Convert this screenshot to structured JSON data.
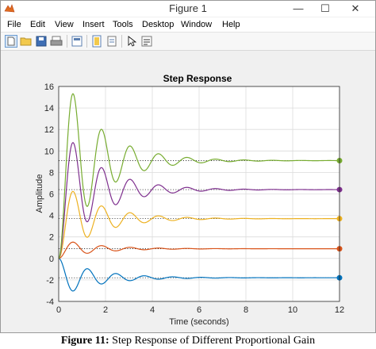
{
  "window": {
    "title": "Figure 1",
    "controls": {
      "minimize": "—",
      "maximize": "☐",
      "close": "✕"
    }
  },
  "menu": {
    "items": [
      "File",
      "Edit",
      "View",
      "Insert",
      "Tools",
      "Desktop",
      "Window",
      "Help"
    ]
  },
  "toolbar": {
    "icons": [
      "new-figure-icon",
      "open-file-icon",
      "save-icon",
      "print-icon",
      "print-preview-icon",
      "link-plot-icon",
      "insert-colorbar-icon",
      "select-arrow-icon",
      "data-cursor-icon"
    ]
  },
  "chart_data": {
    "type": "line",
    "title": "Step Response",
    "xlabel": "Time (seconds)",
    "ylabel": "Amplitude",
    "xlim": [
      0,
      12
    ],
    "ylim": [
      -4,
      16
    ],
    "xticks": [
      0,
      2,
      4,
      6,
      8,
      10,
      12
    ],
    "yticks": [
      -4,
      -2,
      0,
      2,
      4,
      6,
      8,
      10,
      12,
      14,
      16
    ],
    "grid": true,
    "series": [
      {
        "color": "#0072bd",
        "final": -1.8,
        "peak_offset": -1.4,
        "wn": 5.2,
        "zeta": 0.12,
        "dot_end": true
      },
      {
        "color": "#d95319",
        "final": 0.9,
        "peak_offset": 1.0,
        "wn": 5.2,
        "zeta": 0.12,
        "dot_end": true
      },
      {
        "color": "#edb120",
        "final": 3.7,
        "peak_offset": 4.0,
        "wn": 5.2,
        "zeta": 0.12,
        "dot_end": true
      },
      {
        "color": "#7e2f8e",
        "final": 6.4,
        "peak_offset": 4.2,
        "wn": 5.2,
        "zeta": 0.12,
        "dot_end": true
      },
      {
        "color": "#77ac30",
        "final": 9.1,
        "peak_offset": 6.0,
        "wn": 5.2,
        "zeta": 0.12,
        "dot_end": true
      }
    ]
  },
  "caption": {
    "label": "Figure 11:",
    "text": " Step Response of Different Proportional Gain"
  }
}
